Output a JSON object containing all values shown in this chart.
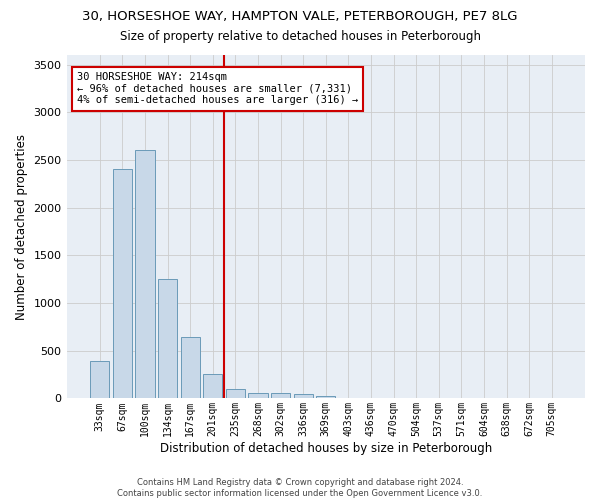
{
  "title_line1": "30, HORSESHOE WAY, HAMPTON VALE, PETERBOROUGH, PE7 8LG",
  "title_line2": "Size of property relative to detached houses in Peterborough",
  "xlabel": "Distribution of detached houses by size in Peterborough",
  "ylabel": "Number of detached properties",
  "categories": [
    "33sqm",
    "67sqm",
    "100sqm",
    "134sqm",
    "167sqm",
    "201sqm",
    "235sqm",
    "268sqm",
    "302sqm",
    "336sqm",
    "369sqm",
    "403sqm",
    "436sqm",
    "470sqm",
    "504sqm",
    "537sqm",
    "571sqm",
    "604sqm",
    "638sqm",
    "672sqm",
    "705sqm"
  ],
  "values": [
    390,
    2400,
    2600,
    1250,
    640,
    260,
    95,
    60,
    55,
    45,
    30,
    0,
    0,
    0,
    0,
    0,
    0,
    0,
    0,
    0,
    0
  ],
  "bar_color": "#c8d8e8",
  "bar_edge_color": "#6a9ab8",
  "grid_color": "#cccccc",
  "bg_color": "#e8eef5",
  "vline_x": 5.5,
  "vline_color": "#cc0000",
  "annotation_text": "30 HORSESHOE WAY: 214sqm\n← 96% of detached houses are smaller (7,331)\n4% of semi-detached houses are larger (316) →",
  "annotation_box_color": "#cc0000",
  "ylim": [
    0,
    3600
  ],
  "yticks": [
    0,
    500,
    1000,
    1500,
    2000,
    2500,
    3000,
    3500
  ],
  "footer_line1": "Contains HM Land Registry data © Crown copyright and database right 2024.",
  "footer_line2": "Contains public sector information licensed under the Open Government Licence v3.0."
}
